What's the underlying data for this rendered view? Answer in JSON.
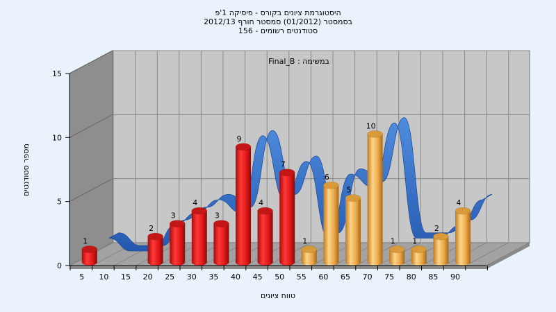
{
  "title_lines": [
    "היסטוגרמת ציונים בקורס - פיסיקה 1'פ",
    "בסמסטר  (01/2012)  סמסטר חורף 2012/13",
    "156 - סטודנטים רשומים"
  ],
  "chart_data": {
    "type": "bar",
    "annotation": "Final_B : במשימה",
    "xlabel": "טווח ציונים",
    "ylabel": "מספר סטודנטים",
    "ylim": [
      0,
      15
    ],
    "yticks": [
      0,
      5,
      10,
      15
    ],
    "x_ticks": [
      "5",
      "10",
      "15",
      "20",
      "25",
      "30",
      "35",
      "40",
      "45",
      "50",
      "55",
      "60",
      "65",
      "70",
      "75",
      "80",
      "85",
      "90"
    ],
    "categories": [
      "5",
      "10",
      "15",
      "20",
      "25",
      "30",
      "35",
      "40",
      "45",
      "50",
      "55",
      "60",
      "65",
      "70",
      "75",
      "80",
      "85",
      "90"
    ],
    "values": [
      1,
      0,
      0,
      2,
      3,
      4,
      3,
      9,
      4,
      7,
      1,
      6,
      5,
      10,
      1,
      1,
      2,
      4
    ],
    "bar_colors": [
      "red",
      "red",
      "red",
      "red",
      "red",
      "red",
      "red",
      "red",
      "red",
      "red",
      "orange",
      "orange",
      "orange",
      "orange",
      "orange",
      "orange",
      "orange",
      "orange"
    ],
    "grid": true,
    "legend": "none",
    "colors": {
      "red_front": "#e02020",
      "red_top": "#c41616",
      "orange_front": "#f0b050",
      "orange_top": "#d99a3a",
      "ribbon": "#2f6fcb",
      "wall_back": "#c6c6c6",
      "wall_side": "#8c8c8c",
      "floor": "#a0a0a0"
    }
  }
}
